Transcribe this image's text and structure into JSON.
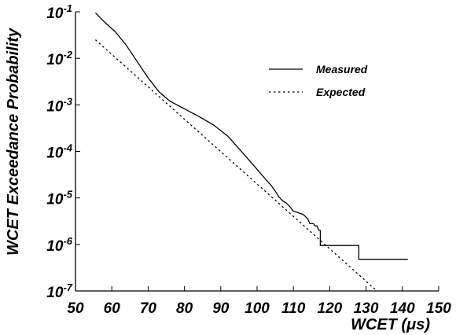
{
  "chart_data": {
    "type": "line",
    "title": "",
    "xlabel": "WCET (μs)",
    "ylabel": "WCET Exceedance Probability",
    "x_scale": "linear",
    "y_scale": "log",
    "xlim": [
      50,
      150
    ],
    "ylim": [
      1e-07,
      0.1
    ],
    "x_ticks": [
      50,
      60,
      70,
      80,
      90,
      100,
      110,
      120,
      130,
      140,
      150
    ],
    "y_ticks": [
      {
        "base": "10",
        "exp": "-7",
        "value": 1e-07
      },
      {
        "base": "10",
        "exp": "-6",
        "value": 1e-06
      },
      {
        "base": "10",
        "exp": "-5",
        "value": 1e-05
      },
      {
        "base": "10",
        "exp": "-4",
        "value": 0.0001
      },
      {
        "base": "10",
        "exp": "-3",
        "value": 0.001
      },
      {
        "base": "10",
        "exp": "-2",
        "value": 0.01
      },
      {
        "base": "10",
        "exp": "-1",
        "value": 0.1
      }
    ],
    "grid": false,
    "legend_position": "top-right",
    "series": [
      {
        "name": "Measured",
        "style": "solid",
        "color": "#000000",
        "x": [
          55.5,
          58,
          61,
          64,
          67,
          70,
          73,
          76,
          80,
          84,
          88,
          92,
          95,
          98,
          100,
          102,
          104,
          105,
          106,
          107,
          108,
          109,
          110,
          111,
          112,
          112.5,
          113,
          114,
          114.5,
          115,
          115.5,
          116,
          116.5,
          117,
          117.4,
          117.4,
          118,
          128,
          128,
          141.5
        ],
        "y": [
          0.095,
          0.06,
          0.037,
          0.019,
          0.0085,
          0.0038,
          0.0019,
          0.0012,
          0.00082,
          0.00056,
          0.00037,
          0.00021,
          0.000115,
          6.2e-05,
          4.1e-05,
          2.7e-05,
          1.8e-05,
          1.4e-05,
          1.05e-05,
          8.7e-06,
          7.8e-06,
          6.5e-06,
          5.2e-06,
          4.9e-06,
          4.6e-06,
          4.5e-06,
          4.2e-06,
          3.5e-06,
          2.8e-06,
          2.8e-06,
          2.8e-06,
          2.5e-06,
          2.5e-06,
          2e-06,
          2e-06,
          9.5e-07,
          9.5e-07,
          9.5e-07,
          4.8e-07,
          4.8e-07
        ]
      },
      {
        "name": "Expected",
        "style": "dotted",
        "color": "#000000",
        "x": [
          55.5,
          133
        ],
        "y": [
          0.025,
          1e-07
        ]
      }
    ]
  }
}
